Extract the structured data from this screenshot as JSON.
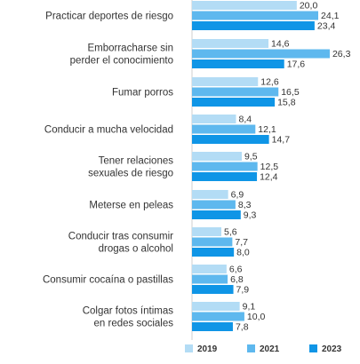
{
  "chart_data": {
    "type": "bar",
    "orientation": "horizontal",
    "categories": [
      [
        "Practicar deportes de riesgo"
      ],
      [
        "Emborracharse sin",
        "perder el conocimiento"
      ],
      [
        "Fumar porros"
      ],
      [
        "Conducir a mucha velocidad"
      ],
      [
        "Tener relaciones",
        "sexuales de riesgo"
      ],
      [
        "Meterse en peleas"
      ],
      [
        "Conducir tras consumir",
        "drogas o alcohol"
      ],
      [
        "Consumir cocaína o pastillas"
      ],
      [
        "Colgar fotos íntimas",
        "en redes sociales"
      ]
    ],
    "series": [
      {
        "name": "2019",
        "color": "#b3dcf5",
        "values": [
          20.0,
          14.6,
          12.6,
          8.4,
          9.5,
          6.9,
          5.6,
          6.6,
          9.1
        ],
        "labels": [
          "20,0",
          "14,6",
          "12,6",
          "8,4",
          "9,5",
          "6,9",
          "5,6",
          "6,6",
          "9,1"
        ]
      },
      {
        "name": "2021",
        "color": "#5eb8ee",
        "values": [
          24.1,
          26.3,
          16.5,
          12.1,
          12.5,
          8.3,
          7.7,
          6.8,
          10.0
        ],
        "labels": [
          "24,1",
          "26,3",
          "16,5",
          "12,1",
          "12,5",
          "8,3",
          "7,7",
          "6,8",
          "10,0"
        ]
      },
      {
        "name": "2023",
        "color": "#0f95e6",
        "values": [
          23.4,
          17.6,
          15.8,
          14.7,
          12.4,
          9.3,
          8.0,
          7.9,
          7.8
        ],
        "labels": [
          "23,4",
          "17,6",
          "15,8",
          "14,7",
          "12,4",
          "9,3",
          "8,0",
          "7,9",
          "7,8"
        ]
      }
    ],
    "xlim": [
      0,
      28
    ],
    "grid": false,
    "legend_position": "bottom-right"
  }
}
